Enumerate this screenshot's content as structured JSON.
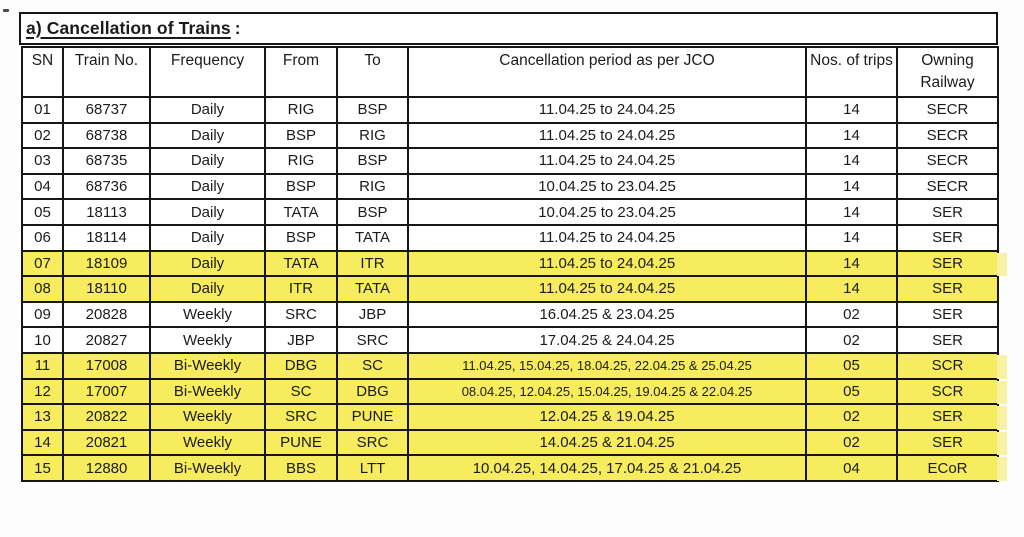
{
  "title": {
    "text": "a) Cancellation of Trains",
    "suffix": ":"
  },
  "colors": {
    "highlight": "#f6ec5d",
    "highlight_nub": "#f8f2a2",
    "border": "#161616",
    "text": "#1b1b1b"
  },
  "table": {
    "headers": [
      {
        "key": "sn",
        "label": "SN"
      },
      {
        "key": "train-no",
        "label": "Train No."
      },
      {
        "key": "frequency",
        "label": "Frequency"
      },
      {
        "key": "from",
        "label": "From"
      },
      {
        "key": "to",
        "label": "To"
      },
      {
        "key": "cancellation-period",
        "label": "Cancellation period as per JCO"
      },
      {
        "key": "nos-of-trips",
        "label": "Nos. of trips"
      },
      {
        "key": "owning-railway",
        "label": "Owning Railway"
      }
    ],
    "rows": [
      {
        "sn": "01",
        "train_no": "68737",
        "frequency": "Daily",
        "from": "RIG",
        "to": "BSP",
        "period": "11.04.25 to 24.04.25",
        "trips": "14",
        "railway": "SECR",
        "highlight": false,
        "hl_sn": "",
        "hl_tail": ""
      },
      {
        "sn": "02",
        "train_no": "68738",
        "frequency": "Daily",
        "from": "BSP",
        "to": "RIG",
        "period": "11.04.25 to 24.04.25",
        "trips": "14",
        "railway": "SECR",
        "highlight": false,
        "hl_sn": "",
        "hl_tail": ""
      },
      {
        "sn": "03",
        "train_no": "68735",
        "frequency": "Daily",
        "from": "RIG",
        "to": "BSP",
        "period": "11.04.25 to 24.04.25",
        "trips": "14",
        "railway": "SECR",
        "highlight": false,
        "hl_sn": "",
        "hl_tail": ""
      },
      {
        "sn": "04",
        "train_no": "68736",
        "frequency": "Daily",
        "from": "BSP",
        "to": "RIG",
        "period": "10.04.25 to 23.04.25",
        "trips": "14",
        "railway": "SECR",
        "highlight": false,
        "hl_sn": "",
        "hl_tail": ""
      },
      {
        "sn": "05",
        "train_no": "18113",
        "frequency": "Daily",
        "from": "TATA",
        "to": "BSP",
        "period": "10.04.25 to 23.04.25",
        "trips": "14",
        "railway": "SER",
        "highlight": false,
        "hl_sn": "",
        "hl_tail": ""
      },
      {
        "sn": "06",
        "train_no": "18114",
        "frequency": "Daily",
        "from": "BSP",
        "to": "TATA",
        "period": "11.04.25 to 24.04.25",
        "trips": "14",
        "railway": "SER",
        "highlight": false,
        "hl_sn": "",
        "hl_tail": ""
      },
      {
        "sn": "07",
        "train_no": "18109",
        "frequency": "Daily",
        "from": "TATA",
        "to": "ITR",
        "period": "11.04.25 to 24.04.25",
        "trips": "14",
        "railway": "SER",
        "highlight": true,
        "hl_sn": "full",
        "hl_tail": "nub"
      },
      {
        "sn": "08",
        "train_no": "18110",
        "frequency": "Daily",
        "from": "ITR",
        "to": "TATA",
        "period": "11.04.25 to 24.04.25",
        "trips": "14",
        "railway": "SER",
        "highlight": true,
        "hl_sn": "full",
        "hl_tail": "fade"
      },
      {
        "sn": "09",
        "train_no": "20828",
        "frequency": "Weekly",
        "from": "SRC",
        "to": "JBP",
        "period": "16.04.25 & 23.04.25",
        "trips": "02",
        "railway": "SER",
        "highlight": false,
        "hl_sn": "",
        "hl_tail": ""
      },
      {
        "sn": "10",
        "train_no": "20827",
        "frequency": "Weekly",
        "from": "JBP",
        "to": "SRC",
        "period": "17.04.25 & 24.04.25",
        "trips": "02",
        "railway": "SER",
        "highlight": false,
        "hl_sn": "",
        "hl_tail": ""
      },
      {
        "sn": "11",
        "train_no": "17008",
        "frequency": "Bi-Weekly",
        "from": "DBG",
        "to": "SC",
        "period": "11.04.25, 15.04.25, 18.04.25, 22.04.25 & 25.04.25",
        "trips": "05",
        "railway": "SCR",
        "highlight": true,
        "hl_sn": "none",
        "hl_tail": "nub"
      },
      {
        "sn": "12",
        "train_no": "17007",
        "frequency": "Bi-Weekly",
        "from": "SC",
        "to": "DBG",
        "period": "08.04.25, 12.04.25, 15.04.25, 19.04.25 & 22.04.25",
        "trips": "05",
        "railway": "SCR",
        "highlight": true,
        "hl_sn": "sliver",
        "hl_tail": "nub"
      },
      {
        "sn": "13",
        "train_no": "20822",
        "frequency": "Weekly",
        "from": "SRC",
        "to": "PUNE",
        "period": "12.04.25 & 19.04.25",
        "trips": "02",
        "railway": "SER",
        "highlight": true,
        "hl_sn": "sliver",
        "hl_tail": "nub"
      },
      {
        "sn": "14",
        "train_no": "20821",
        "frequency": "Weekly",
        "from": "PUNE",
        "to": "SRC",
        "period": "14.04.25 & 21.04.25",
        "trips": "02",
        "railway": "SER",
        "highlight": true,
        "hl_sn": "sliver",
        "hl_tail": "nub"
      },
      {
        "sn": "15",
        "train_no": "12880",
        "frequency": "Bi-Weekly",
        "from": "BBS",
        "to": "LTT",
        "period": "10.04.25, 14.04.25, 17.04.25 & 21.04.25",
        "trips": "04",
        "railway": "ECoR",
        "highlight": true,
        "hl_sn": "third",
        "hl_tail": "nub"
      }
    ]
  }
}
